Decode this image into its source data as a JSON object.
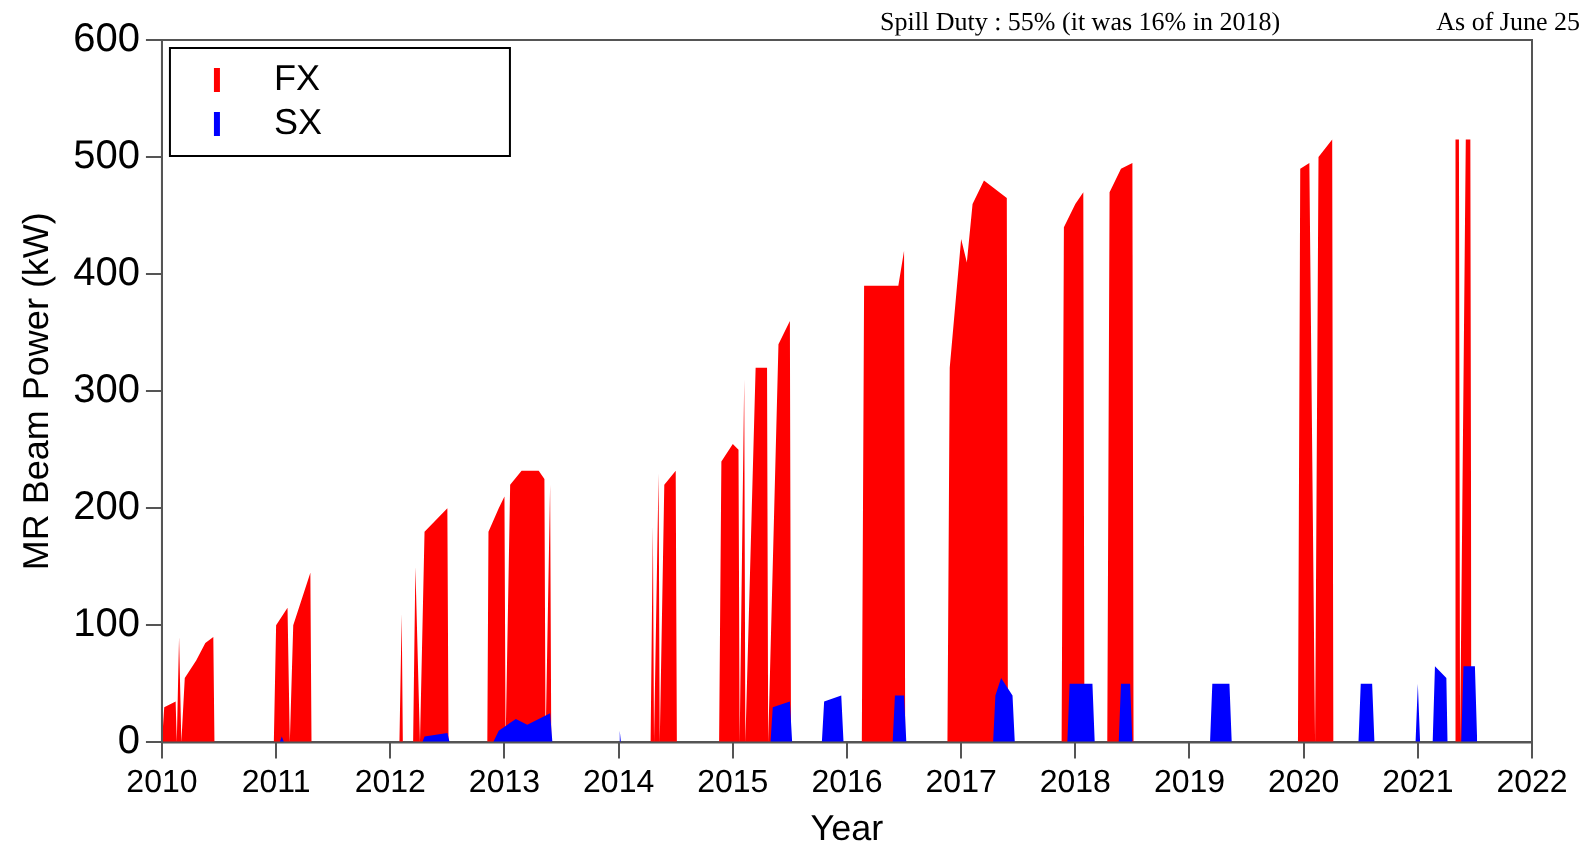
{
  "chart_data": {
    "type": "area",
    "xlabel": "Year",
    "ylabel": "MR Beam Power (kW)",
    "annotations": [
      "Spill Duty : 55% (it was 16% in 2018)",
      "As of June 25"
    ],
    "xlim": [
      2010,
      2022
    ],
    "xticks": [
      2010,
      2011,
      2012,
      2013,
      2014,
      2015,
      2016,
      2017,
      2018,
      2019,
      2020,
      2021,
      2022
    ],
    "ylim": [
      0,
      600
    ],
    "yticks": [
      0,
      100,
      200,
      300,
      400,
      500,
      600
    ],
    "grid": false,
    "legend": "top left",
    "series": [
      {
        "name": "FX",
        "color": "#ff0000",
        "x": [
          2010.0,
          2010.02,
          2010.12,
          2010.13,
          2010.15,
          2010.17,
          2010.2,
          2010.3,
          2010.38,
          2010.45,
          2010.46,
          2010.98,
          2011.0,
          2011.1,
          2011.12,
          2011.15,
          2011.25,
          2011.3,
          2011.31,
          2012.08,
          2012.1,
          2012.11,
          2012.2,
          2012.22,
          2012.26,
          2012.3,
          2012.4,
          2012.5,
          2012.51,
          2012.85,
          2012.86,
          2012.95,
          2013.0,
          2013.01,
          2013.05,
          2013.15,
          2013.3,
          2013.35,
          2013.36,
          2013.4,
          2013.41,
          2014.28,
          2014.3,
          2014.31,
          2014.35,
          2014.36,
          2014.4,
          2014.5,
          2014.51,
          2014.88,
          2014.9,
          2015.0,
          2015.05,
          2015.06,
          2015.1,
          2015.11,
          2015.2,
          2015.3,
          2015.31,
          2015.4,
          2015.5,
          2015.51,
          2016.13,
          2016.15,
          2016.3,
          2016.45,
          2016.5,
          2016.51,
          2016.88,
          2016.9,
          2017.0,
          2017.05,
          2017.1,
          2017.2,
          2017.4,
          2017.41,
          2017.88,
          2017.9,
          2018.0,
          2018.07,
          2018.08,
          2018.28,
          2018.3,
          2018.4,
          2018.5,
          2018.51,
          2019.95,
          2019.97,
          2020.05,
          2020.1,
          2020.13,
          2020.25,
          2020.26,
          2021.32,
          2021.33,
          2021.36,
          2021.37,
          2021.42,
          2021.46,
          2021.47
        ],
        "values": [
          0,
          30,
          35,
          0,
          90,
          0,
          55,
          70,
          85,
          90,
          0,
          0,
          100,
          115,
          0,
          100,
          130,
          145,
          0,
          0,
          110,
          0,
          0,
          150,
          0,
          180,
          190,
          200,
          0,
          0,
          180,
          200,
          210,
          0,
          220,
          232,
          232,
          225,
          0,
          220,
          0,
          0,
          185,
          0,
          230,
          0,
          220,
          232,
          0,
          0,
          240,
          255,
          250,
          0,
          310,
          0,
          320,
          320,
          0,
          340,
          360,
          0,
          0,
          390,
          390,
          390,
          420,
          0,
          0,
          320,
          430,
          410,
          460,
          480,
          465,
          0,
          0,
          440,
          460,
          470,
          0,
          0,
          470,
          490,
          495,
          0,
          0,
          490,
          495,
          0,
          500,
          515,
          0,
          0,
          515,
          515,
          0,
          515,
          515,
          0
        ]
      },
      {
        "name": "SX",
        "color": "#0000ff",
        "x": [
          2011.03,
          2011.05,
          2011.07,
          2012.28,
          2012.3,
          2012.5,
          2012.52,
          2012.9,
          2012.95,
          2013.1,
          2013.2,
          2013.4,
          2013.42,
          2014.0,
          2014.01,
          2014.02,
          2015.33,
          2015.35,
          2015.5,
          2015.52,
          2015.78,
          2015.8,
          2015.95,
          2015.97,
          2016.4,
          2016.42,
          2016.5,
          2016.52,
          2017.28,
          2017.3,
          2017.35,
          2017.45,
          2017.47,
          2017.93,
          2017.95,
          2018.15,
          2018.17,
          2018.38,
          2018.4,
          2018.48,
          2018.5,
          2019.18,
          2019.2,
          2019.35,
          2019.37,
          2020.48,
          2020.5,
          2020.6,
          2020.62,
          2020.98,
          2021.0,
          2021.02,
          2021.13,
          2021.15,
          2021.25,
          2021.26,
          2021.38,
          2021.4,
          2021.5,
          2021.52
        ],
        "values": [
          0,
          5,
          0,
          0,
          5,
          8,
          0,
          0,
          10,
          20,
          15,
          25,
          0,
          0,
          10,
          0,
          0,
          30,
          35,
          0,
          0,
          35,
          40,
          0,
          0,
          40,
          40,
          0,
          0,
          40,
          55,
          40,
          0,
          0,
          50,
          50,
          0,
          0,
          50,
          50,
          0,
          0,
          50,
          50,
          0,
          0,
          50,
          50,
          0,
          0,
          50,
          0,
          0,
          65,
          55,
          0,
          0,
          65,
          65,
          0
        ]
      }
    ]
  }
}
